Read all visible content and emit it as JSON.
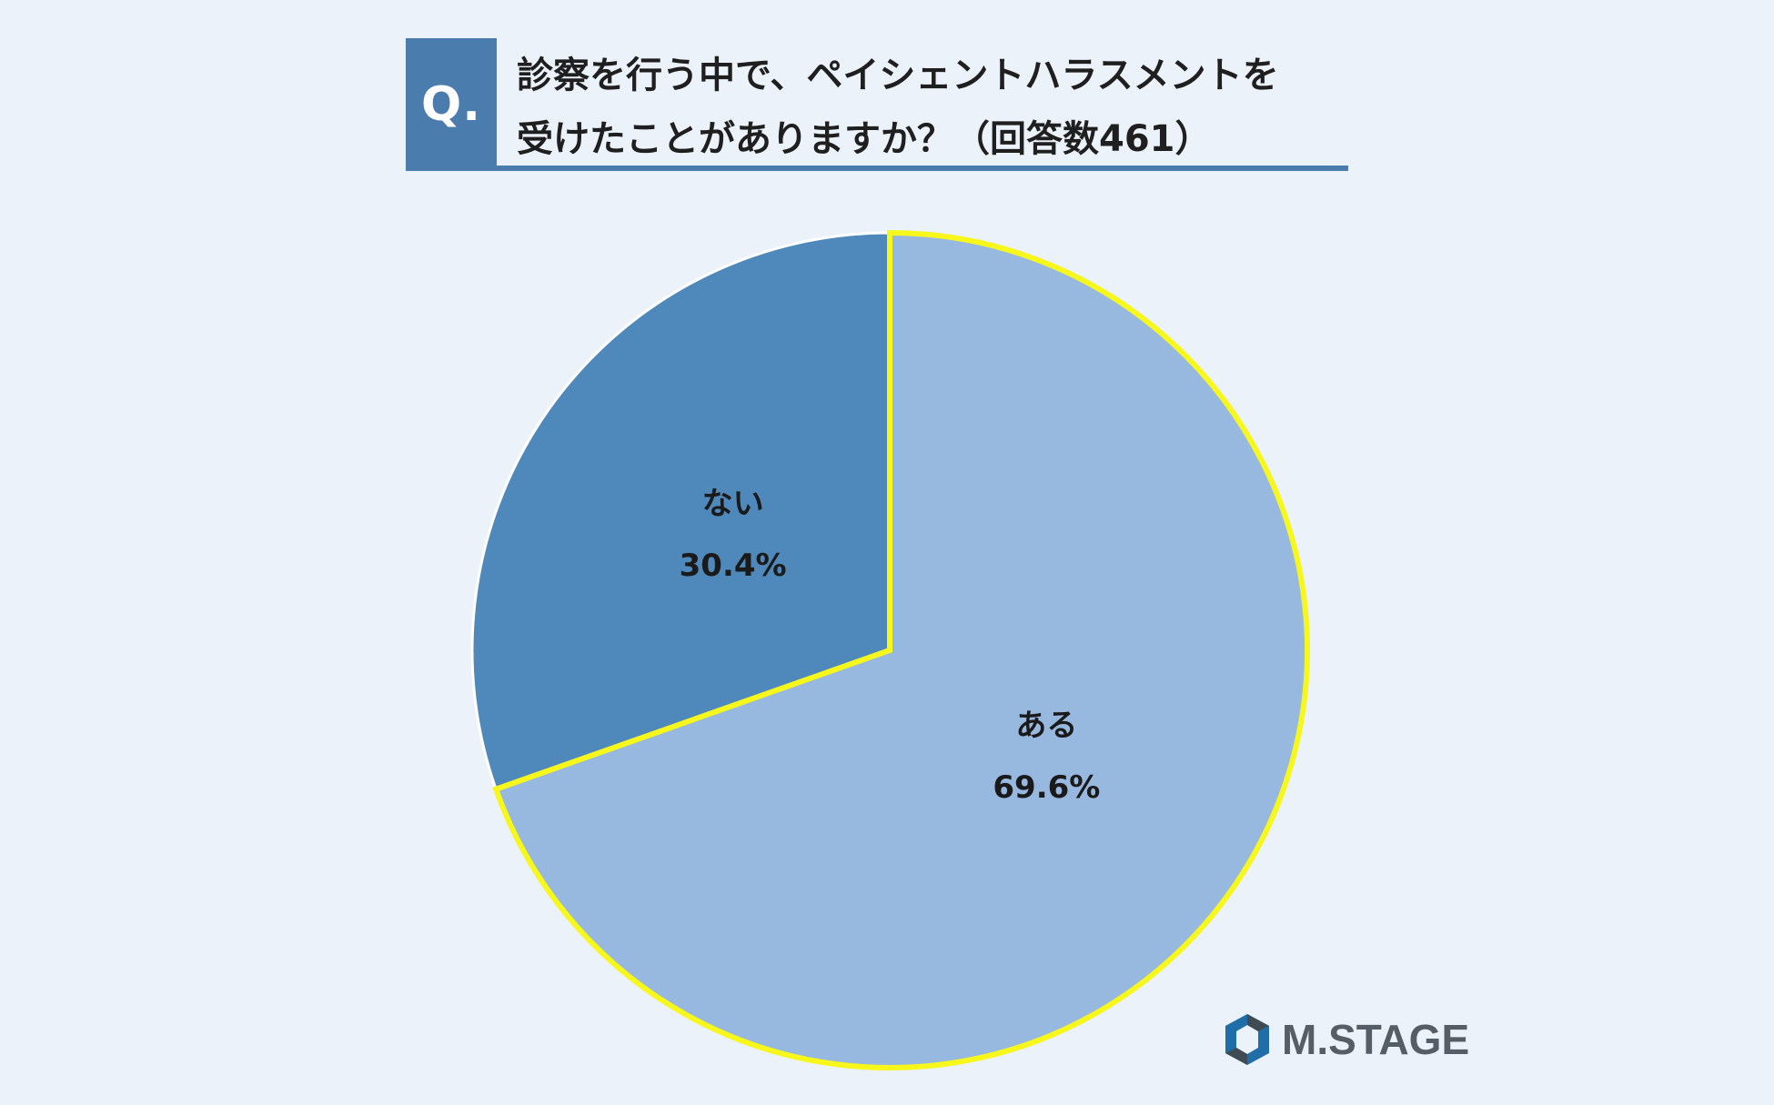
{
  "header": {
    "q_label": "Q.",
    "question_line1": "診察を行う中で、ペイシェントハラスメントを",
    "question_line2": "受けたことがありますか？（回答数461）"
  },
  "chart_data": {
    "type": "pie",
    "title": "",
    "start_angle_deg": 0,
    "direction": "clockwise",
    "slices": [
      {
        "label": "ある",
        "value": 69.6,
        "value_label": "69.6%",
        "color": "#97b8df",
        "stroke": "#f7f71c"
      },
      {
        "label": "ない",
        "value": 30.4,
        "value_label": "30.4%",
        "color": "#4f88bb",
        "stroke": "#ffffff"
      }
    ]
  },
  "brand": {
    "logo_icon": "hexagon-logo-icon",
    "name": "M.STAGE",
    "colors": {
      "primary": "#1f6ea8",
      "dark": "#404a52"
    }
  },
  "colors": {
    "background": "#ebf2fa",
    "accent": "#4a7cad"
  }
}
